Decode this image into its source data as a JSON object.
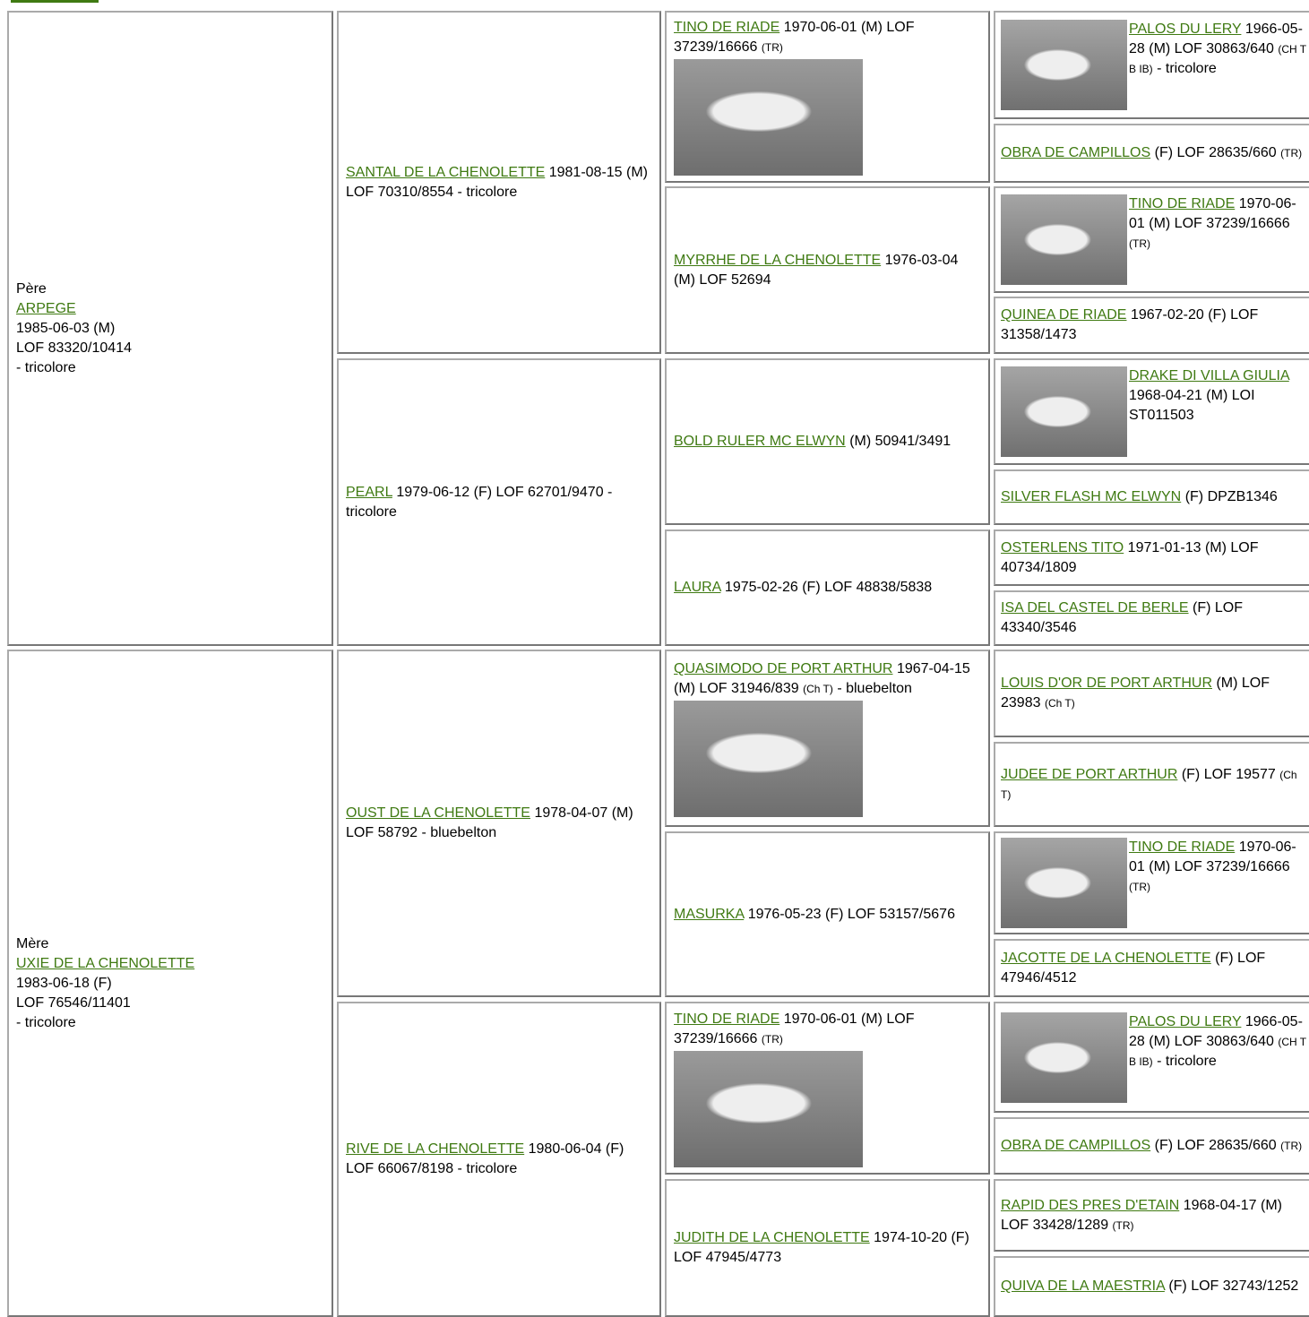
{
  "pedigree": {
    "sire": {
      "label": "Père",
      "name": "ARPEGE",
      "lines": [
        "1985-06-03 (M)",
        "LOF 83320/10414",
        "- tricolore"
      ]
    },
    "dam": {
      "label": "Mère",
      "name": "UXIE DE LA CHENOLETTE",
      "lines": [
        "1983-06-18 (F)",
        "LOF 76546/11401",
        "- tricolore"
      ]
    },
    "generation2": [
      {
        "name": "SANTAL DE LA CHENOLETTE",
        "text": "1981-08-15 (M) LOF 70310/8554 - tricolore"
      },
      {
        "name": "PEARL",
        "text": "1979-06-12 (F) LOF 62701/9470 - tricolore"
      },
      {
        "name": "OUST DE LA CHENOLETTE",
        "text": "1978-04-07 (M) LOF 58792 - bluebelton"
      },
      {
        "name": "RIVE DE LA CHENOLETTE",
        "text": "1980-06-04 (F) LOF 66067/8198 - tricolore"
      }
    ],
    "generation3": [
      {
        "name": "TINO DE RIADE",
        "text": "1970-06-01 (M) LOF 37239/16666",
        "note": "(TR)",
        "photo": true
      },
      {
        "name": "MYRRHE DE LA CHENOLETTE",
        "text": "1976-03-04 (M) LOF 52694"
      },
      {
        "name": "BOLD RULER MC ELWYN",
        "text": "(M) 50941/3491"
      },
      {
        "name": "LAURA",
        "text": "1975-02-26 (F) LOF 48838/5838"
      },
      {
        "name": "QUASIMODO DE PORT ARTHUR",
        "text": "1967-04-15 (M) LOF 31946/839",
        "note": "(Ch T)",
        "suffix": "- bluebelton",
        "photo": true
      },
      {
        "name": "MASURKA",
        "text": "1976-05-23 (F) LOF 53157/5676"
      },
      {
        "name": "TINO DE RIADE",
        "text": "1970-06-01 (M) LOF 37239/16666",
        "note": "(TR)",
        "photo": true
      },
      {
        "name": "JUDITH DE LA CHENOLETTE",
        "text": "1974-10-20 (F) LOF 47945/4773"
      }
    ],
    "generation4": [
      {
        "name": "PALOS DU LERY",
        "text": "1966-05-28 (M) LOF 30863/640",
        "note": "(CH T B IB)",
        "suffix": "- tricolore",
        "photo": true
      },
      {
        "name": "OBRA DE CAMPILLOS",
        "text": "(F) LOF 28635/660",
        "note": "(TR)"
      },
      {
        "name": "TINO DE RIADE",
        "text": "1970-06-01 (M) LOF 37239/16666",
        "note": "(TR)",
        "photo": true
      },
      {
        "name": "QUINEA DE RIADE",
        "text": "1967-02-20 (F) LOF 31358/1473"
      },
      {
        "name": "DRAKE DI VILLA GIULIA",
        "text": "1968-04-21 (M) LOI ST011503",
        "photo": true
      },
      {
        "name": "SILVER FLASH MC ELWYN",
        "text": "(F) DPZB1346"
      },
      {
        "name": "OSTERLENS TITO",
        "text": "1971-01-13 (M) LOF 40734/1809"
      },
      {
        "name": "ISA DEL CASTEL DE BERLE",
        "text": "(F) LOF 43340/3546"
      },
      {
        "name": "LOUIS D'OR DE PORT ARTHUR",
        "text": "(M) LOF 23983",
        "note": "(Ch T)"
      },
      {
        "name": "JUDEE DE PORT ARTHUR",
        "text": "(F) LOF 19577",
        "note": "(Ch T)"
      },
      {
        "name": "TINO DE RIADE",
        "text": "1970-06-01 (M) LOF 37239/16666",
        "note": "(TR)",
        "photo": true
      },
      {
        "name": "JACOTTE DE LA CHENOLETTE",
        "text": "(F) LOF 47946/4512"
      },
      {
        "name": "PALOS DU LERY",
        "text": "1966-05-28 (M) LOF 30863/640",
        "note": "(CH T B IB)",
        "suffix": "- tricolore",
        "photo": true
      },
      {
        "name": "OBRA DE CAMPILLOS",
        "text": "(F) LOF 28635/660",
        "note": "(TR)"
      },
      {
        "name": "RAPID DES PRES D'ETAIN",
        "text": "1968-04-17 (M) LOF 33428/1289",
        "note": "(TR)"
      },
      {
        "name": "QUIVA DE LA MAESTRIA",
        "text": "(F) LOF 32743/1252"
      }
    ]
  }
}
